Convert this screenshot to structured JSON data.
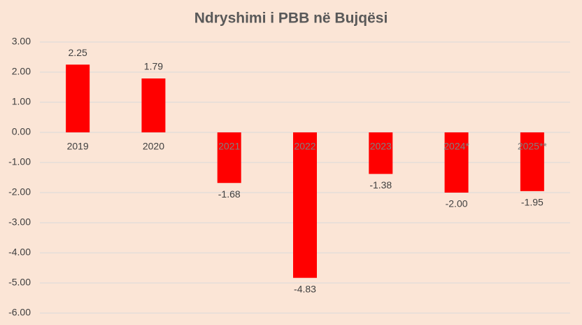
{
  "chart_data": {
    "type": "bar",
    "title": "Ndryshimi  i PBB në Bujqësi",
    "categories": [
      "2019",
      "2020",
      "2021",
      "2022",
      "2023",
      "2024*",
      "2025**"
    ],
    "values": [
      2.25,
      1.79,
      -1.68,
      -4.83,
      -1.38,
      -2.0,
      -1.95
    ],
    "value_labels": [
      "2.25",
      "1.79",
      "-1.68",
      "-4.83",
      "-1.38",
      "-2.00",
      "-1.95"
    ],
    "color": "#ff0000",
    "ylim": [
      -6,
      3
    ],
    "yticks": [
      {
        "value": 3,
        "label": "3.00"
      },
      {
        "value": 2,
        "label": "2.00"
      },
      {
        "value": 1,
        "label": "1.00"
      },
      {
        "value": 0,
        "label": "0.00"
      },
      {
        "value": -1,
        "label": "-1.00"
      },
      {
        "value": -2,
        "label": "-2.00"
      },
      {
        "value": -3,
        "label": "-3.00"
      },
      {
        "value": -4,
        "label": "-4.00"
      },
      {
        "value": -5,
        "label": "-5.00"
      },
      {
        "value": -6,
        "label": "-6.00"
      }
    ],
    "grid": true
  }
}
